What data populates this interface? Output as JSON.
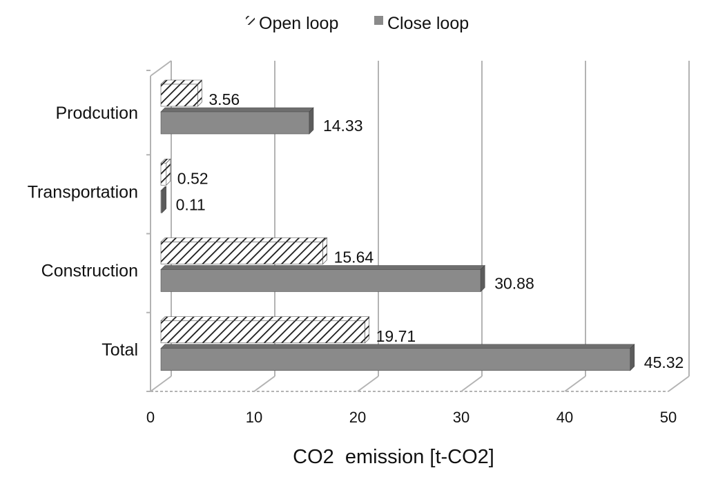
{
  "chart_data": {
    "type": "bar",
    "orientation": "horizontal",
    "style": "3d-clustered",
    "categories": [
      "Prodcution",
      "Transportation",
      "Construction",
      "Total"
    ],
    "series": [
      {
        "name": "Open loop",
        "values": [
          3.56,
          0.52,
          15.64,
          19.71
        ],
        "labels": [
          "3.56",
          "0.52",
          "15.64",
          "19.71"
        ],
        "pattern": "diagonal-hatch"
      },
      {
        "name": "Close loop",
        "values": [
          14.33,
          0.11,
          30.88,
          45.32
        ],
        "labels": [
          "14.33",
          "0.11",
          "30.88",
          "45.32"
        ],
        "pattern": "solid"
      }
    ],
    "xlabel": "CO2  emission [t-CO2]",
    "ylabel": "",
    "xlim": [
      0,
      50
    ],
    "xticks": [
      "0",
      "10",
      "20",
      "30",
      "40",
      "50"
    ],
    "grid": true,
    "legend_position": "top-center",
    "colors": {
      "bar_fill": "#8a8a8a",
      "bar_side": "#5c5c5c",
      "bar_top": "#6e6e6e",
      "grid": "#b3b3b3",
      "hatch": "#1a1a1a"
    }
  }
}
